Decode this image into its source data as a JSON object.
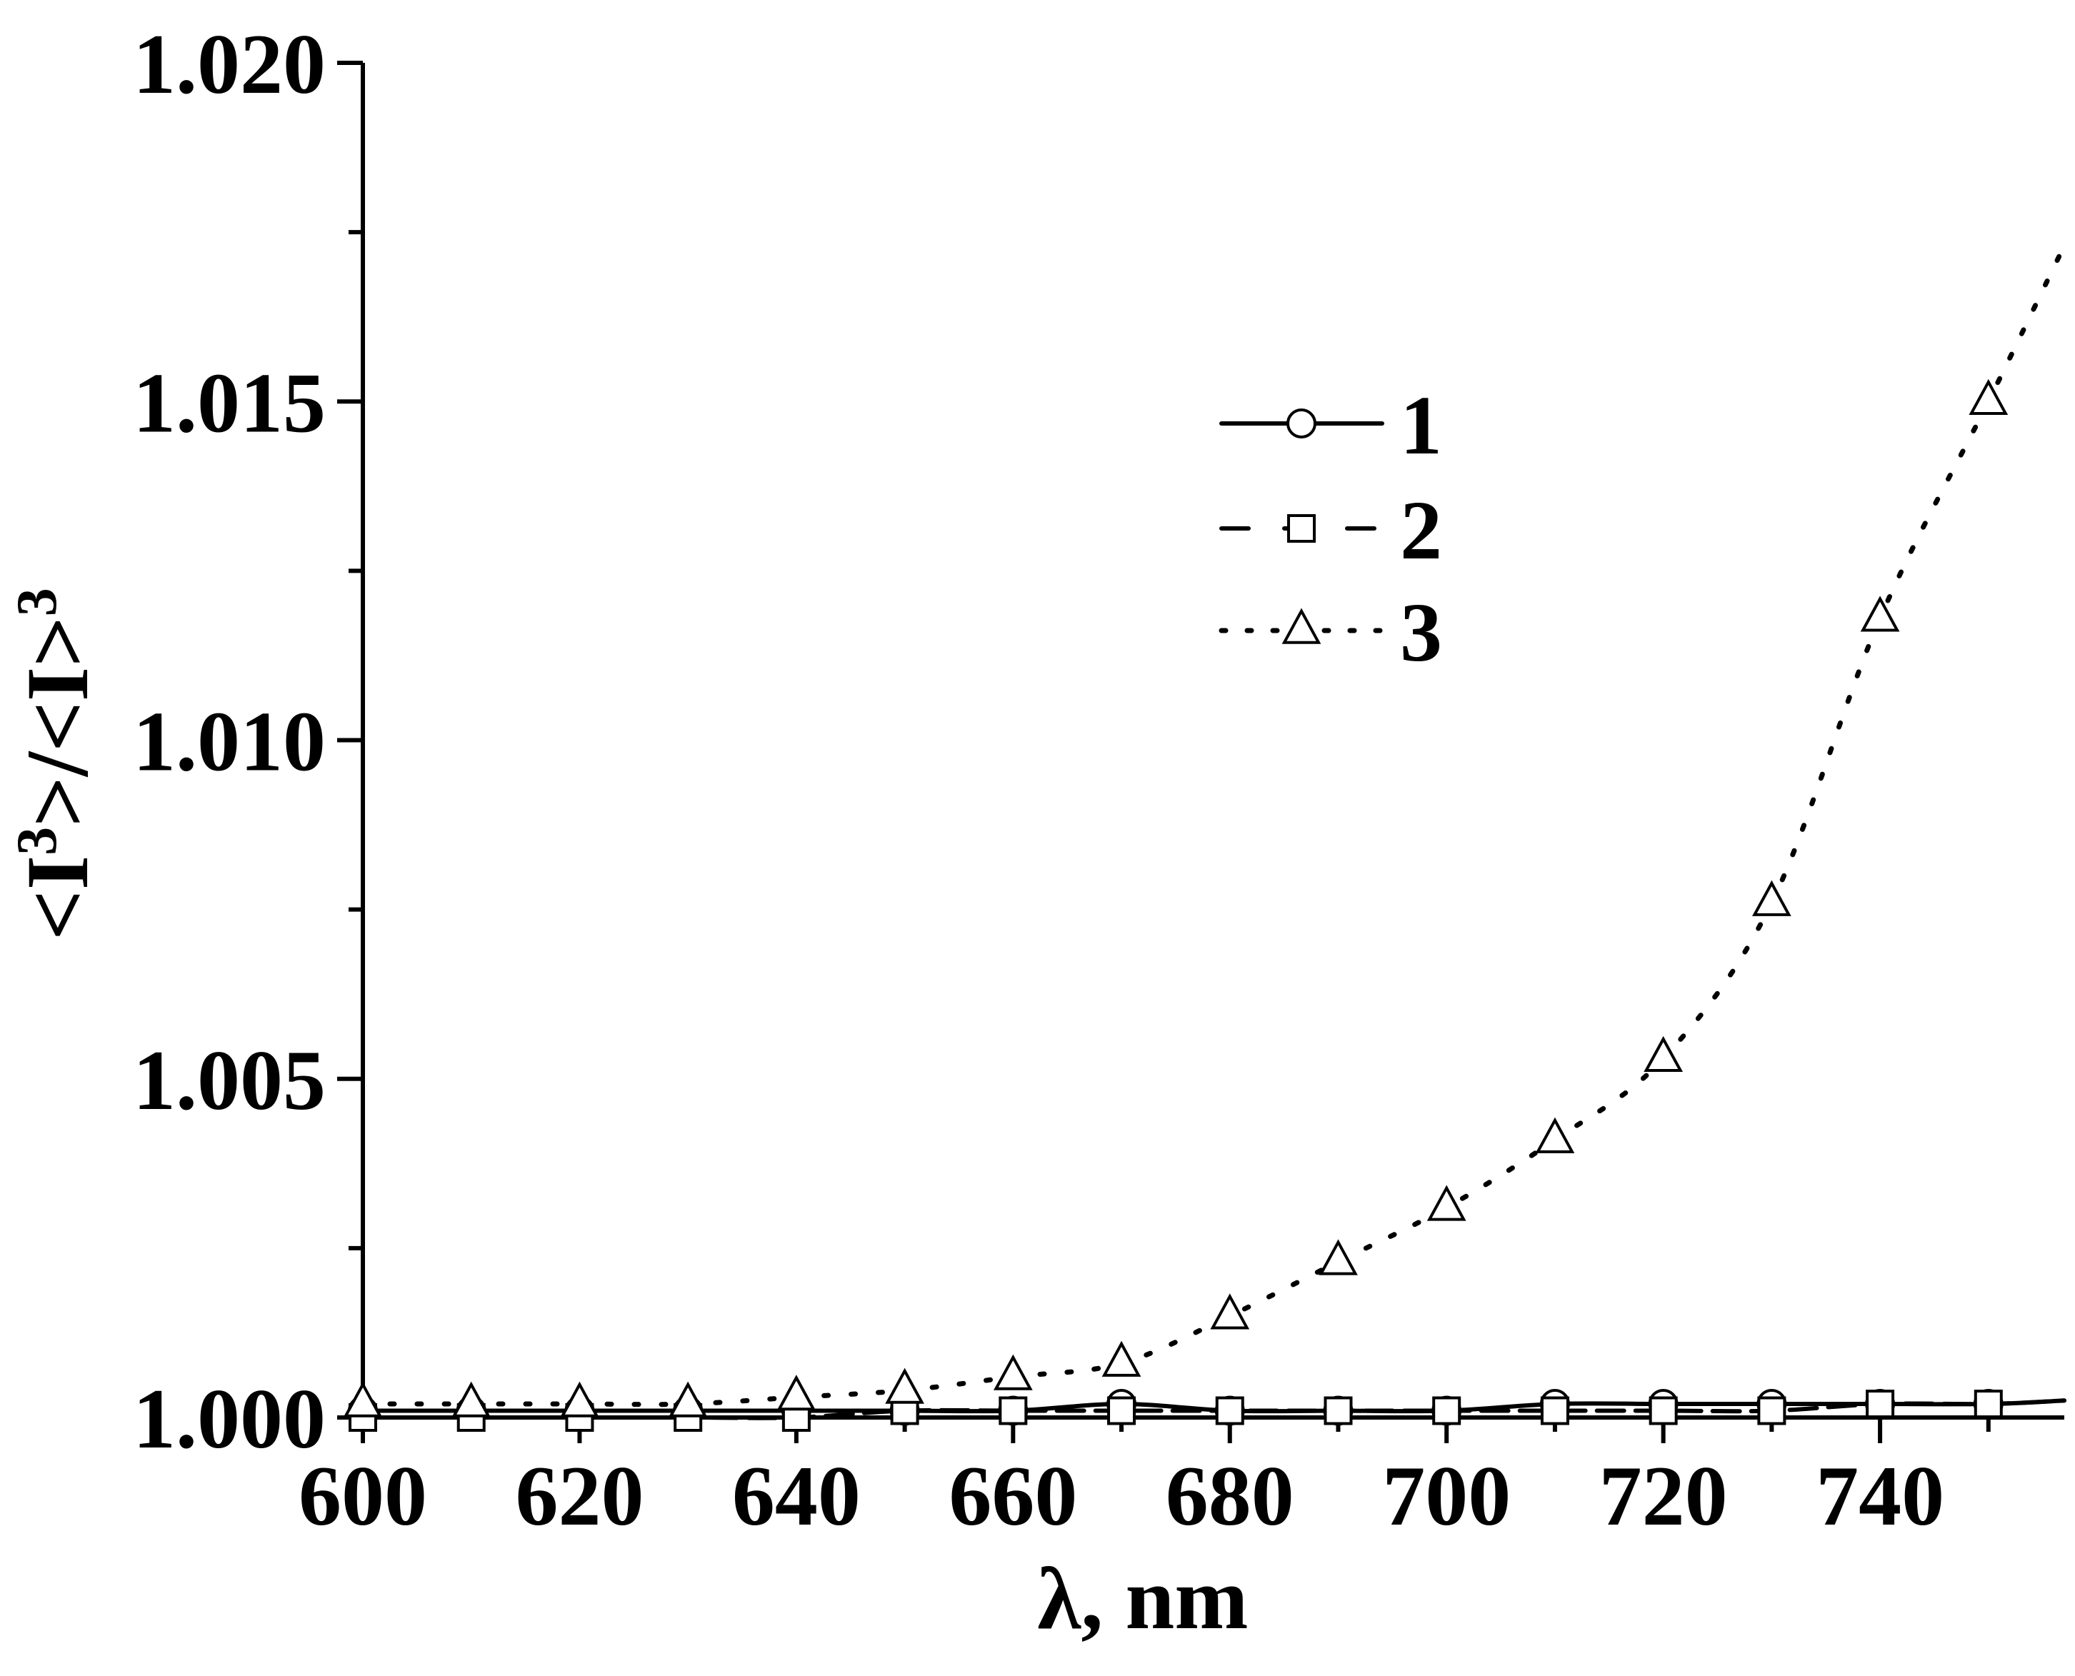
{
  "chart_data": {
    "type": "line",
    "xlabel": "λ, nm",
    "ylabel": "<I³>/<I>³",
    "ylabel_parts": {
      "pre": "<I",
      "sup1": "3",
      "mid": ">/<I>",
      "sup2": "3"
    },
    "xlim": [
      600,
      757
    ],
    "ylim": [
      1.0,
      1.02
    ],
    "xticks": [
      600,
      620,
      640,
      660,
      680,
      700,
      720,
      740
    ],
    "xtick_labels": [
      "600",
      "620",
      "640",
      "660",
      "680",
      "700",
      "720",
      "740"
    ],
    "yticks": [
      1.0,
      1.005,
      1.01,
      1.015,
      1.02
    ],
    "ytick_labels": [
      "1.000",
      "1.005",
      "1.010",
      "1.015",
      "1.020"
    ],
    "grid": false,
    "legend_position": "upper-center",
    "series": [
      {
        "name": "1",
        "marker": "circle",
        "line_style": "solid",
        "x": [
          600,
          610,
          620,
          630,
          640,
          650,
          660,
          670,
          680,
          690,
          700,
          710,
          720,
          730,
          740,
          750
        ],
        "y": [
          1.0001,
          1.0001,
          1.0001,
          1.0001,
          1.0001,
          1.0001,
          1.0001,
          1.0002,
          1.0001,
          1.0001,
          1.0001,
          1.0002,
          1.0002,
          1.0002,
          1.0002,
          1.0002
        ]
      },
      {
        "name": "2",
        "marker": "square",
        "line_style": "dashed",
        "x": [
          600,
          610,
          620,
          630,
          640,
          650,
          660,
          670,
          680,
          690,
          700,
          710,
          720,
          730,
          740,
          750
        ],
        "y": [
          1.0,
          1.0,
          1.0,
          1.0,
          1.0,
          1.0001,
          1.0001,
          1.0001,
          1.0001,
          1.0001,
          1.0001,
          1.0001,
          1.0001,
          1.0001,
          1.0002,
          1.0002
        ]
      },
      {
        "name": "3",
        "marker": "triangle",
        "line_style": "dotted",
        "x": [
          600,
          610,
          620,
          630,
          640,
          650,
          660,
          670,
          680,
          690,
          700,
          710,
          720,
          730,
          740,
          750
        ],
        "y": [
          1.0002,
          1.0002,
          1.0002,
          1.0002,
          1.0003,
          1.0004,
          1.0006,
          1.0008,
          1.0015,
          1.0023,
          1.0031,
          1.0041,
          1.0053,
          1.0076,
          1.0118,
          1.015
        ]
      }
    ],
    "series3_curve": {
      "x": [
        600,
        610,
        620,
        630,
        640,
        650,
        660,
        670,
        680,
        690,
        700,
        710,
        720,
        730,
        740,
        750,
        757
      ],
      "y": [
        1.0002,
        1.0002,
        1.0002,
        1.0002,
        1.0003,
        1.0004,
        1.0006,
        1.0008,
        1.0015,
        1.0023,
        1.0031,
        1.0041,
        1.0053,
        1.0076,
        1.0118,
        1.015,
        1.0173
      ]
    }
  }
}
